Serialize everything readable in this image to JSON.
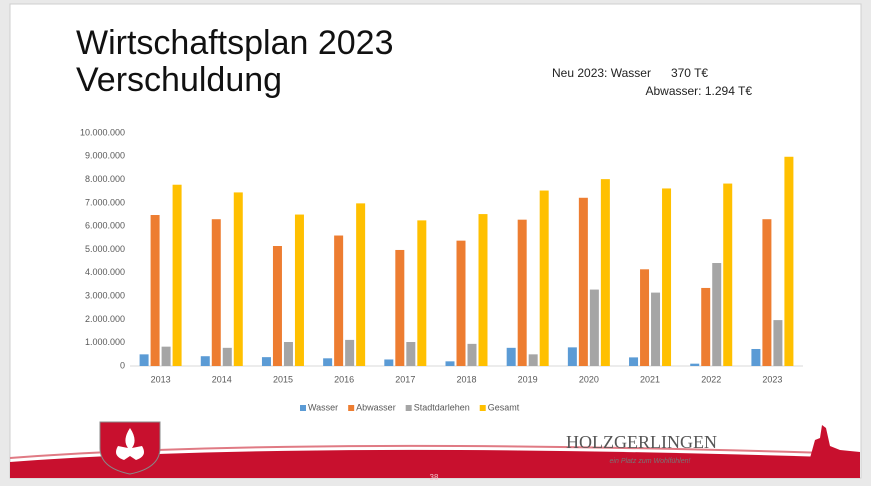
{
  "slide": {
    "title_lines": [
      "Wirtschaftsplan 2023",
      "Verschuldung"
    ],
    "note_lines": [
      "Neu 2023: Wasser      370 T€",
      "Abwasser: 1.294 T€"
    ],
    "logo_text": "HOLZGERLINGEN",
    "logo_tagline": "ein Platz zum Wohlfühlen!",
    "page_number": 38
  },
  "chart_data": {
    "type": "bar",
    "categories": [
      "2013",
      "2014",
      "2015",
      "2016",
      "2017",
      "2018",
      "2019",
      "2020",
      "2021",
      "2022",
      "2023"
    ],
    "series": [
      {
        "name": "Wasser",
        "color": "#5b9bd5",
        "values": [
          500000,
          420000,
          380000,
          330000,
          280000,
          200000,
          780000,
          800000,
          370000,
          100000,
          730000
        ]
      },
      {
        "name": "Abwasser",
        "color": "#ed7d31",
        "values": [
          6480000,
          6300000,
          5150000,
          5600000,
          4980000,
          5380000,
          6280000,
          7220000,
          4150000,
          3350000,
          6300000
        ]
      },
      {
        "name": "Stadtdarlehen",
        "color": "#a5a5a5",
        "values": [
          830000,
          780000,
          1030000,
          1120000,
          1030000,
          950000,
          500000,
          3280000,
          3150000,
          4420000,
          1970000
        ]
      },
      {
        "name": "Gesamt",
        "color": "#ffc000",
        "values": [
          7780000,
          7450000,
          6500000,
          6980000,
          6250000,
          6520000,
          7530000,
          8020000,
          7620000,
          7830000,
          8980000
        ]
      }
    ],
    "ylim": [
      0,
      10000000
    ],
    "yticks": [
      0,
      {
        "value": 1000000,
        "label": "1.000.000"
      },
      {
        "value": 2000000,
        "label": "2.000.000"
      },
      {
        "value": 3000000,
        "label": "3.000.000"
      },
      {
        "value": 4000000,
        "label": "4.000.000"
      },
      {
        "value": 5000000,
        "label": "5.000.000"
      },
      {
        "value": 6000000,
        "label": "6.000.000"
      },
      {
        "value": 7000000,
        "label": "7.000.000"
      },
      {
        "value": 8000000,
        "label": "8.000.000"
      },
      {
        "value": 9000000,
        "label": "9.000.000"
      },
      {
        "value": 10000000,
        "label": "10.000.000"
      }
    ],
    "grid": false,
    "legend": "bottom"
  }
}
